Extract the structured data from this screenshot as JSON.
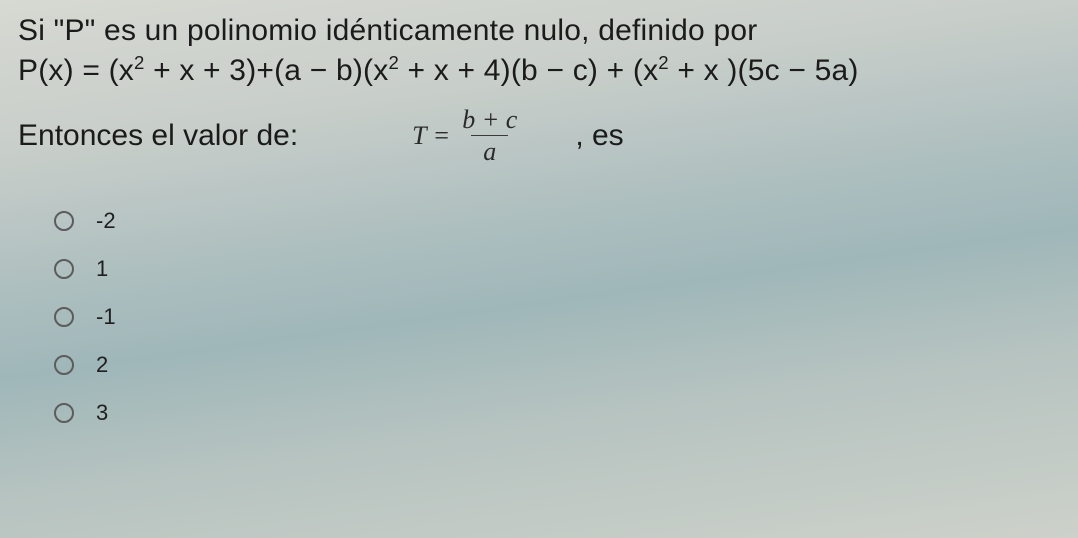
{
  "colors": {
    "text": "#1b1b1b",
    "formula_text": "#2a2a2a",
    "radio_border": "#5c5c5c",
    "frac_rule": "#3a3a3a",
    "bg_stops": [
      "#d7d9d2",
      "#c8ceca",
      "#aebfbf",
      "#9fb7b9",
      "#b6c3c0",
      "#cdd1ca"
    ]
  },
  "typography": {
    "body_family": "Arial",
    "body_size_pt": 22,
    "formula_family": "Times New Roman",
    "formula_italic": true,
    "formula_size_pt": 19,
    "option_size_pt": 16
  },
  "question": {
    "line1": "Si \"P\" es un polinomio idénticamente nulo, definido por",
    "line2_html": "P(x) = (x<sup>2</sup> + x + 3)+(a − b)(x<sup>2</sup> + x + 4)(b − c) +  (x<sup>2</sup> + x )(5c − 5a)",
    "prompt_prefix": "Entonces el valor de:",
    "formula": {
      "lhs": "T =",
      "numerator": "b + c",
      "denominator": "a"
    },
    "prompt_suffix": ", es"
  },
  "options": [
    {
      "label": "-2"
    },
    {
      "label": "1"
    },
    {
      "label": "-1"
    },
    {
      "label": "2"
    },
    {
      "label": "3"
    }
  ]
}
